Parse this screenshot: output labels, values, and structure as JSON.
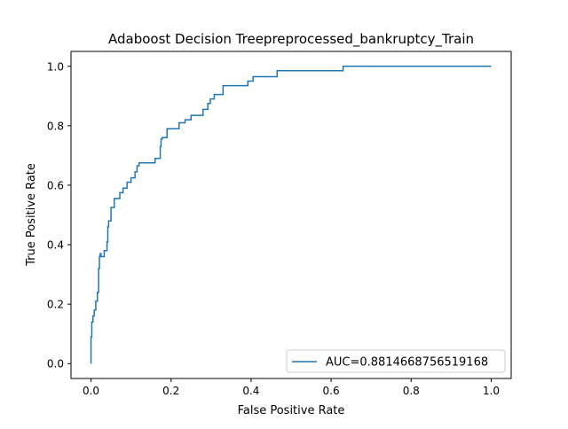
{
  "chart_data": {
    "type": "line",
    "title": "Adaboost Decision Treepreprocessed_bankruptcy_Train",
    "xlabel": "False Positive Rate",
    "ylabel": "True Positive Rate",
    "xlim": [
      -0.05,
      1.05
    ],
    "ylim": [
      -0.05,
      1.05
    ],
    "xticks": [
      0.0,
      0.2,
      0.4,
      0.6,
      0.8,
      1.0
    ],
    "yticks": [
      0.0,
      0.2,
      0.4,
      0.6,
      0.8,
      1.0
    ],
    "xtick_labels": [
      "0.0",
      "0.2",
      "0.4",
      "0.6",
      "0.8",
      "1.0"
    ],
    "ytick_labels": [
      "0.0",
      "0.2",
      "0.4",
      "0.6",
      "0.8",
      "1.0"
    ],
    "grid": false,
    "legend_position": "lower-right",
    "series": [
      {
        "name": "AUC=0.8814668756519168",
        "color": "#1f77b4",
        "x": [
          0.0,
          0.0,
          0.002,
          0.002,
          0.005,
          0.005,
          0.008,
          0.008,
          0.012,
          0.012,
          0.016,
          0.016,
          0.019,
          0.019,
          0.021,
          0.021,
          0.023,
          0.023,
          0.025,
          0.025,
          0.033,
          0.033,
          0.04,
          0.04,
          0.042,
          0.042,
          0.044,
          0.044,
          0.05,
          0.05,
          0.058,
          0.058,
          0.072,
          0.072,
          0.08,
          0.08,
          0.09,
          0.09,
          0.1,
          0.1,
          0.11,
          0.11,
          0.115,
          0.115,
          0.12,
          0.12,
          0.16,
          0.16,
          0.173,
          0.173,
          0.175,
          0.175,
          0.178,
          0.178,
          0.19,
          0.19,
          0.22,
          0.22,
          0.235,
          0.235,
          0.25,
          0.25,
          0.28,
          0.28,
          0.292,
          0.292,
          0.298,
          0.298,
          0.308,
          0.308,
          0.33,
          0.33,
          0.392,
          0.392,
          0.405,
          0.405,
          0.465,
          0.465,
          0.63,
          0.63,
          1.0
        ],
        "y": [
          0.0,
          0.09,
          0.09,
          0.14,
          0.14,
          0.16,
          0.16,
          0.18,
          0.18,
          0.21,
          0.21,
          0.24,
          0.24,
          0.32,
          0.32,
          0.36,
          0.36,
          0.37,
          0.37,
          0.36,
          0.36,
          0.38,
          0.38,
          0.41,
          0.41,
          0.46,
          0.46,
          0.48,
          0.48,
          0.525,
          0.525,
          0.555,
          0.555,
          0.575,
          0.575,
          0.59,
          0.59,
          0.61,
          0.61,
          0.625,
          0.625,
          0.645,
          0.645,
          0.665,
          0.665,
          0.675,
          0.675,
          0.69,
          0.69,
          0.73,
          0.73,
          0.755,
          0.755,
          0.76,
          0.76,
          0.79,
          0.79,
          0.81,
          0.81,
          0.82,
          0.82,
          0.835,
          0.835,
          0.855,
          0.855,
          0.875,
          0.875,
          0.89,
          0.89,
          0.905,
          0.905,
          0.935,
          0.935,
          0.95,
          0.95,
          0.965,
          0.965,
          0.985,
          0.985,
          1.0,
          1.0
        ]
      }
    ]
  }
}
